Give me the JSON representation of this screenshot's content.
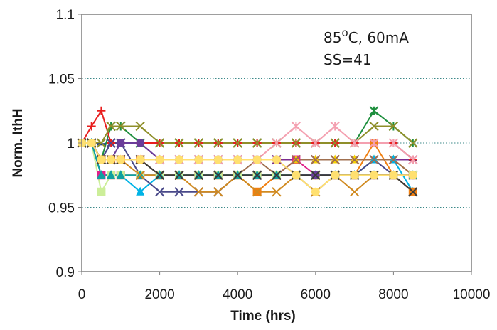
{
  "chart_data": {
    "type": "line",
    "title": "",
    "xlabel": "Time (hrs)",
    "ylabel": "Norm. IthH",
    "xlim": [
      0,
      10000
    ],
    "ylim": [
      0.9,
      1.1
    ],
    "xticks": [
      "0",
      "2000",
      "4000",
      "6000",
      "8000",
      "10000"
    ],
    "yticks": [
      "0.9",
      "0.95",
      "1",
      "1.05",
      "1.1"
    ],
    "grid": "horizontal dotted",
    "annotation": {
      "line1_prefix": "85",
      "line1_sup": "o",
      "line1_suffix": "C, 60mA",
      "line2": "SS=41"
    },
    "x": [
      0,
      250,
      500,
      750,
      1000,
      1500,
      2000,
      2500,
      3000,
      3500,
      4000,
      4500,
      5000,
      5500,
      6000,
      6500,
      7000,
      7500,
      8000,
      8500
    ],
    "series": [
      {
        "color": "#1f3a93",
        "marker": "dash",
        "values": [
          1.0,
          1.0,
          0.999,
          1.0,
          1.0,
          1.0,
          1.0,
          1.0,
          1.0,
          1.0,
          1.0,
          1.0,
          1.0,
          1.0,
          1.0,
          1.0,
          1.0,
          1.0,
          1.0,
          0.987
        ]
      },
      {
        "color": "#e0218a",
        "marker": "square",
        "values": [
          1.0,
          1.0,
          0.975,
          0.975,
          0.975,
          0.975,
          0.975,
          0.975,
          0.975,
          0.975,
          0.975,
          0.975,
          0.975,
          0.987,
          0.975,
          0.975,
          0.975,
          0.975,
          0.975,
          0.975
        ]
      },
      {
        "color": "#f5d000",
        "marker": "triangle",
        "values": [
          1.0,
          1.0,
          0.987,
          0.987,
          0.987,
          0.987,
          0.987,
          0.987,
          0.987,
          0.987,
          0.987,
          0.987,
          0.987,
          0.987,
          0.987,
          0.987,
          0.987,
          0.987,
          0.987,
          0.975
        ]
      },
      {
        "color": "#00b3e6",
        "marker": "triangle",
        "values": [
          1.0,
          1.0,
          0.975,
          0.975,
          0.975,
          0.962,
          0.975,
          0.975,
          0.975,
          0.975,
          0.975,
          0.975,
          0.975,
          0.975,
          0.975,
          0.975,
          0.975,
          0.987,
          0.987,
          0.962
        ]
      },
      {
        "color": "#7b2c8f",
        "marker": "x",
        "values": [
          1.0,
          1.0,
          0.987,
          1.0,
          1.0,
          1.0,
          0.987,
          0.987,
          0.987,
          0.987,
          0.987,
          0.987,
          0.987,
          0.987,
          0.987,
          0.987,
          0.987,
          0.987,
          0.987,
          0.987
        ]
      },
      {
        "color": "#1e8f3e",
        "marker": "star",
        "values": [
          1.0,
          1.0,
          0.987,
          1.013,
          1.013,
          1.0,
          1.0,
          1.0,
          1.0,
          1.0,
          1.0,
          1.0,
          1.0,
          1.0,
          1.0,
          1.0,
          1.0,
          1.025,
          1.013,
          1.0
        ]
      },
      {
        "color": "#e81e1e",
        "marker": "plus",
        "values": [
          1.0,
          1.013,
          1.025,
          1.0,
          1.0,
          1.0,
          1.0,
          1.0,
          1.0,
          1.0,
          1.0,
          1.0,
          1.0,
          1.0,
          1.0,
          1.0,
          1.0,
          1.0,
          1.0,
          0.987
        ]
      },
      {
        "color": "#f07f10",
        "marker": "square",
        "values": [
          1.0,
          1.0,
          0.987,
          0.987,
          0.987,
          0.987,
          0.975,
          0.975,
          0.975,
          0.975,
          0.975,
          0.962,
          0.975,
          0.975,
          0.975,
          0.975,
          0.975,
          1.0,
          0.975,
          0.962
        ]
      },
      {
        "color": "#8f8f2a",
        "marker": "x",
        "values": [
          1.0,
          1.0,
          1.0,
          1.013,
          1.013,
          1.013,
          1.0,
          1.0,
          1.0,
          1.0,
          1.0,
          1.0,
          1.0,
          1.0,
          1.0,
          1.0,
          1.0,
          1.013,
          1.013,
          1.0
        ]
      },
      {
        "color": "#4a4a8a",
        "marker": "x",
        "values": [
          1.0,
          1.0,
          0.987,
          1.0,
          1.0,
          0.975,
          0.962,
          0.962,
          0.962,
          0.962,
          0.975,
          0.975,
          0.975,
          0.975,
          0.962,
          0.975,
          0.975,
          0.987,
          0.975,
          0.962
        ]
      },
      {
        "color": "#a07050",
        "marker": "x",
        "values": [
          1.0,
          1.0,
          0.987,
          0.987,
          0.987,
          0.987,
          0.975,
          0.975,
          0.975,
          0.975,
          0.975,
          0.987,
          0.975,
          0.987,
          0.987,
          0.987,
          0.987,
          0.987,
          0.987,
          0.975
        ]
      },
      {
        "color": "#f4a0b0",
        "marker": "star",
        "values": [
          1.0,
          1.0,
          0.987,
          0.987,
          0.987,
          0.987,
          0.987,
          0.987,
          0.987,
          0.987,
          0.987,
          0.987,
          1.0,
          1.013,
          1.0,
          1.013,
          1.0,
          1.0,
          1.0,
          0.987
        ]
      },
      {
        "color": "#ccee99",
        "marker": "square",
        "values": [
          1.0,
          1.0,
          0.962,
          0.975,
          0.975,
          0.975,
          0.975,
          0.975,
          0.975,
          0.975,
          0.975,
          0.975,
          0.975,
          0.975,
          0.975,
          0.975,
          0.975,
          0.975,
          0.975,
          0.975
        ]
      },
      {
        "color": "#10a0a0",
        "marker": "triangle",
        "values": [
          1.0,
          1.0,
          0.975,
          0.975,
          0.975,
          0.975,
          0.975,
          0.975,
          0.975,
          0.975,
          0.975,
          0.975,
          0.975,
          0.975,
          0.975,
          0.975,
          0.975,
          0.975,
          0.975,
          0.975
        ]
      },
      {
        "color": "#d08a20",
        "marker": "x",
        "values": [
          1.0,
          1.0,
          0.987,
          0.987,
          0.987,
          0.975,
          0.975,
          0.975,
          0.962,
          0.962,
          0.975,
          0.962,
          0.962,
          0.975,
          0.962,
          0.975,
          0.962,
          0.975,
          0.975,
          0.962
        ]
      },
      {
        "color": "#6a3d9a",
        "marker": "circle",
        "values": [
          1.0,
          1.0,
          0.987,
          0.987,
          1.0,
          1.0,
          0.987,
          0.987,
          0.987,
          0.987,
          0.987,
          0.987,
          0.987,
          0.975,
          0.975,
          0.975,
          0.975,
          0.975,
          0.975,
          0.975
        ]
      },
      {
        "color": "#3a3a3a",
        "marker": "x",
        "values": [
          1.0,
          1.0,
          0.987,
          0.987,
          0.987,
          0.987,
          0.975,
          0.975,
          0.975,
          0.975,
          0.975,
          0.975,
          0.975,
          0.975,
          0.975,
          0.975,
          0.975,
          0.975,
          0.975,
          0.962
        ]
      },
      {
        "color": "#ffe070",
        "marker": "circle",
        "values": [
          1.0,
          1.0,
          0.987,
          0.987,
          0.987,
          0.987,
          0.987,
          0.987,
          0.987,
          0.987,
          0.987,
          0.987,
          0.987,
          0.975,
          0.962,
          0.975,
          0.975,
          0.975,
          0.975,
          0.975
        ]
      }
    ]
  }
}
